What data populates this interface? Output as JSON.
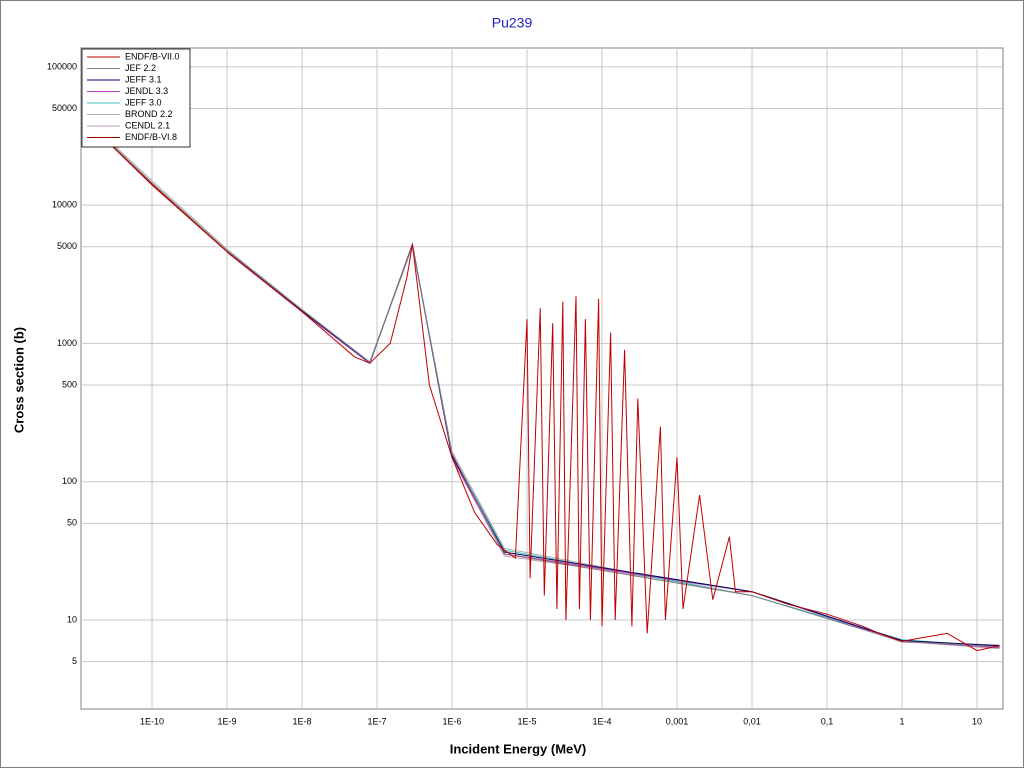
{
  "chart_data": {
    "type": "line",
    "title": "Pu239",
    "x_label": "Incident Energy (MeV)",
    "y_label": "Cross section (b)",
    "xlog": true,
    "ylog": true,
    "grid": true,
    "legend": "upper left",
    "xlim": [
      1.13e-11,
      22.2
    ],
    "ylim": [
      2.27,
      137000
    ],
    "xticks": [
      {
        "value": 1e-10,
        "label": "1E-10"
      },
      {
        "value": 1e-09,
        "label": "1E-9"
      },
      {
        "value": 1e-08,
        "label": "1E-8"
      },
      {
        "value": 1e-07,
        "label": "1E-7"
      },
      {
        "value": 1e-06,
        "label": "1E-6"
      },
      {
        "value": 1e-05,
        "label": "1E-5"
      },
      {
        "value": 0.0001,
        "label": "1E-4"
      },
      {
        "value": 0.001,
        "label": "0,001"
      },
      {
        "value": 0.01,
        "label": "0,01"
      },
      {
        "value": 0.1,
        "label": "0,1"
      },
      1,
      10
    ],
    "yticks": [
      5,
      10,
      50,
      100,
      500,
      1000,
      5000,
      10000,
      50000,
      100000
    ],
    "series": [
      {
        "name": "ENDF/B-VII.0",
        "color": "#c00000",
        "x": [
          2.5e-11,
          1e-10,
          1e-09,
          1e-08,
          5e-08,
          8e-08,
          1.5e-07,
          2.5e-07,
          2.96e-07,
          3.5e-07,
          5e-07,
          1e-06,
          2e-06,
          4e-06,
          7e-06,
          1e-05,
          1.1e-05,
          1.5e-05,
          1.7e-05,
          2.2e-05,
          2.5e-05,
          3e-05,
          3.3e-05,
          4.5e-05,
          5e-05,
          6e-05,
          7e-05,
          9e-05,
          0.0001,
          0.00013,
          0.00015,
          0.0002,
          0.00025,
          0.0003,
          0.0004,
          0.0006,
          0.0007,
          0.001,
          0.0012,
          0.002,
          0.003,
          0.005,
          0.006,
          0.01,
          0.03,
          0.1,
          0.3,
          0.5,
          1,
          2,
          4,
          10,
          20
        ],
        "values": [
          29000,
          14000,
          4600,
          1700,
          800,
          720,
          1000,
          3000,
          5200,
          2500,
          500,
          150,
          60,
          35,
          28,
          1500,
          20,
          1800,
          15,
          1400,
          12,
          2000,
          10,
          2200,
          12,
          1500,
          10,
          2100,
          9,
          1200,
          10,
          900,
          9,
          400,
          8,
          250,
          10,
          150,
          12,
          80,
          14,
          40,
          16,
          16,
          13,
          11,
          9,
          8,
          7,
          7.5,
          8,
          6,
          6.5
        ]
      },
      {
        "name": "JEF 2.2",
        "color": "#808080",
        "x": [
          3e-11,
          1e-10,
          1e-09,
          1e-08,
          8e-08,
          2.96e-07,
          1e-06,
          5e-06,
          0.01,
          1,
          20
        ],
        "values": [
          27000,
          14500,
          4700,
          1750,
          730,
          5100,
          160,
          30,
          15,
          7,
          6.4
        ]
      },
      {
        "name": "JEFF 3.1",
        "color": "#000060",
        "x": [
          1e-09,
          1e-08,
          8e-08,
          2.96e-07,
          1e-06,
          5e-06,
          0.01,
          1,
          20
        ],
        "values": [
          4650,
          1720,
          725,
          5150,
          155,
          31,
          16,
          7.1,
          6.5
        ]
      },
      {
        "name": "JENDL 3.3",
        "color": "#c040c0",
        "x": [
          1e-09,
          1e-08,
          8e-08,
          2.96e-07,
          1e-06,
          5e-06,
          0.01,
          1,
          20
        ],
        "values": [
          4600,
          1700,
          720,
          5200,
          150,
          30,
          16,
          7,
          6.3
        ]
      },
      {
        "name": "JEFF 3.0",
        "color": "#40c0c0",
        "x": [
          1e-09,
          1e-08,
          8e-08,
          2.96e-07,
          1e-06,
          5e-06,
          0.01,
          1,
          20
        ],
        "values": [
          4700,
          1740,
          730,
          5100,
          158,
          32,
          15,
          7.2,
          6.4
        ]
      },
      {
        "name": "BROND 2.2",
        "color": "#b0b0b0",
        "x": [
          2e-11,
          1e-10,
          1e-09,
          1e-08,
          8e-08,
          2.96e-07,
          1e-06,
          5e-06,
          0.01,
          1,
          20
        ],
        "values": [
          34000,
          15000,
          4800,
          1760,
          735,
          5000,
          165,
          33,
          15,
          7,
          6.2
        ]
      },
      {
        "name": "CENDL 2.1",
        "color": "#c0a0c0",
        "x": [
          1e-09,
          1e-08,
          8e-08,
          2.96e-07,
          1e-06,
          5e-06,
          0.01,
          1,
          20
        ],
        "values": [
          4550,
          1690,
          715,
          5250,
          148,
          29,
          16,
          6.9,
          6.6
        ]
      },
      {
        "name": "ENDF/B-VI.8",
        "color": "#a00000",
        "x": [
          2.5e-11,
          1e-10,
          1e-09,
          1e-08,
          8e-08,
          2.96e-07,
          1e-06,
          5e-06,
          0.01,
          1,
          20
        ],
        "values": [
          29500,
          14200,
          4620,
          1710,
          722,
          5180,
          152,
          30,
          16,
          7,
          6.5
        ]
      }
    ]
  }
}
